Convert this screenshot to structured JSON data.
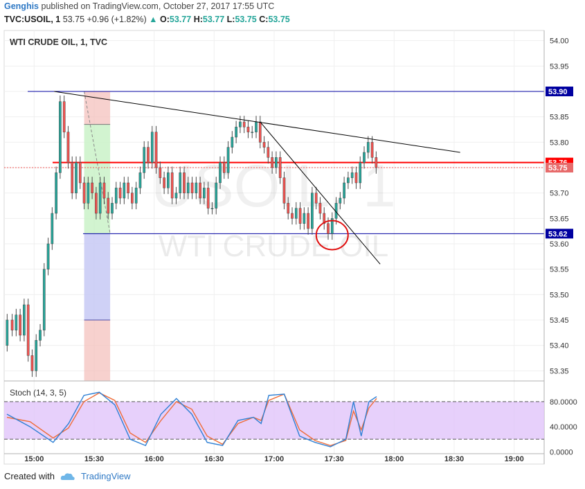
{
  "header": {
    "author": "Genghis",
    "published_text": "published on TradingView.com, October 27, 2017 17:55 UTC",
    "symbol": "TVC:USOIL, 1",
    "last": "53.75",
    "change_arrow": "▲",
    "change": "+0.96 (+1.82%)",
    "o_label": "O:",
    "o_val": "53.77",
    "h_label": "H:",
    "h_val": "53.77",
    "l_label": "L:",
    "l_val": "53.75",
    "c_label": "C:",
    "c_val": "53.75"
  },
  "chart_title": "WTI CRUDE OIL, 1, TVC",
  "watermark": {
    "line1": "USOIL, 1",
    "line2": "WTI CRUDE OIL"
  },
  "footer": {
    "created_with": "Created with",
    "brand": "TradingView"
  },
  "colors": {
    "up": "#26a69a",
    "down": "#ef5350",
    "candle_body": "#4a4a4a",
    "resistance": "#ff0000",
    "level_line": "#0000a0",
    "trend_line": "#000000",
    "stoch_k": "#2d7fd4",
    "stoch_d": "#ef6c39",
    "stoch_band": "#e1c4fa"
  },
  "chart_data": {
    "type": "candlestick",
    "price_axis": {
      "min": 53.33,
      "max": 54.02,
      "ticks": [
        "54.00",
        "53.95",
        "53.90",
        "53.85",
        "53.80",
        "53.75",
        "53.70",
        "53.65",
        "53.60",
        "53.55",
        "53.50",
        "53.45",
        "53.40",
        "53.35"
      ]
    },
    "time_axis": {
      "start": "14:45",
      "end": "19:15",
      "ticks": [
        "15:00",
        "15:30",
        "16:00",
        "16:30",
        "17:00",
        "17:30",
        "18:00",
        "18:30",
        "19:00"
      ]
    },
    "horizontal_levels": [
      {
        "value": 53.9,
        "label": "53.90",
        "style": "level"
      },
      {
        "value": 53.76,
        "label": "53.76",
        "style": "resistance"
      },
      {
        "value": 53.62,
        "label": "53.62",
        "style": "level"
      }
    ],
    "last_price": {
      "value": 53.75,
      "label": "53.75"
    },
    "trend_lines": [
      {
        "from": [
          "15:10",
          53.9
        ],
        "to": [
          "18:33",
          53.78
        ]
      },
      {
        "from": [
          "16:53",
          53.84
        ],
        "to": [
          "17:53",
          53.56
        ]
      }
    ],
    "position_tool": {
      "from": "15:25",
      "to": "15:38",
      "entry": 53.62,
      "target": 53.835,
      "stop": 53.45,
      "top": 53.9,
      "bottom": 53.33
    },
    "circle_marker": {
      "time": "17:29",
      "price": 53.617
    },
    "price_path": [
      [
        "14:45",
        53.4
      ],
      [
        "14:48",
        53.45
      ],
      [
        "14:50",
        53.43
      ],
      [
        "14:52",
        53.46
      ],
      [
        "14:54",
        53.42
      ],
      [
        "14:56",
        53.48
      ],
      [
        "14:58",
        53.38
      ],
      [
        "15:00",
        53.35
      ],
      [
        "15:02",
        53.41
      ],
      [
        "15:04",
        53.43
      ],
      [
        "15:06",
        53.55
      ],
      [
        "15:08",
        53.6
      ],
      [
        "15:10",
        53.66
      ],
      [
        "15:12",
        53.74
      ],
      [
        "15:14",
        53.88
      ],
      [
        "15:16",
        53.82
      ],
      [
        "15:18",
        53.76
      ],
      [
        "15:20",
        53.7
      ],
      [
        "15:22",
        53.76
      ],
      [
        "15:24",
        53.72
      ],
      [
        "15:26",
        53.68
      ],
      [
        "15:28",
        53.72
      ],
      [
        "15:30",
        53.7
      ],
      [
        "15:32",
        53.66
      ],
      [
        "15:34",
        53.72
      ],
      [
        "15:36",
        53.69
      ],
      [
        "15:38",
        53.66
      ],
      [
        "15:40",
        53.68
      ],
      [
        "15:42",
        53.71
      ],
      [
        "15:44",
        53.69
      ],
      [
        "15:46",
        53.72
      ],
      [
        "15:48",
        53.7
      ],
      [
        "15:50",
        53.68
      ],
      [
        "15:52",
        53.71
      ],
      [
        "15:54",
        53.74
      ],
      [
        "15:56",
        53.79
      ],
      [
        "15:58",
        53.76
      ],
      [
        "16:00",
        53.82
      ],
      [
        "16:02",
        53.75
      ],
      [
        "16:04",
        53.73
      ],
      [
        "16:06",
        53.71
      ],
      [
        "16:08",
        53.74
      ],
      [
        "16:10",
        53.69
      ],
      [
        "16:12",
        53.7
      ],
      [
        "16:14",
        53.74
      ],
      [
        "16:16",
        53.7
      ],
      [
        "16:18",
        53.72
      ],
      [
        "16:20",
        53.7
      ],
      [
        "16:22",
        53.72
      ],
      [
        "16:24",
        53.69
      ],
      [
        "16:26",
        53.71
      ],
      [
        "16:28",
        53.67
      ],
      [
        "16:30",
        53.67
      ],
      [
        "16:32",
        53.72
      ],
      [
        "16:34",
        53.76
      ],
      [
        "16:36",
        53.74
      ],
      [
        "16:38",
        53.79
      ],
      [
        "16:40",
        53.81
      ],
      [
        "16:42",
        53.83
      ],
      [
        "16:44",
        53.84
      ],
      [
        "16:46",
        53.83
      ],
      [
        "16:48",
        53.82
      ],
      [
        "16:50",
        53.82
      ],
      [
        "16:52",
        53.84
      ],
      [
        "16:54",
        53.8
      ],
      [
        "16:56",
        53.79
      ],
      [
        "16:58",
        53.77
      ],
      [
        "17:00",
        53.75
      ],
      [
        "17:02",
        53.77
      ],
      [
        "17:04",
        53.73
      ],
      [
        "17:06",
        53.68
      ],
      [
        "17:08",
        53.66
      ],
      [
        "17:10",
        53.65
      ],
      [
        "17:12",
        53.67
      ],
      [
        "17:14",
        53.64
      ],
      [
        "17:16",
        53.66
      ],
      [
        "17:18",
        53.63
      ],
      [
        "17:20",
        53.7
      ],
      [
        "17:22",
        53.68
      ],
      [
        "17:24",
        53.66
      ],
      [
        "17:26",
        53.64
      ],
      [
        "17:28",
        53.62
      ],
      [
        "17:30",
        53.65
      ],
      [
        "17:32",
        53.68
      ],
      [
        "17:34",
        53.69
      ],
      [
        "17:36",
        53.72
      ],
      [
        "17:38",
        53.73
      ],
      [
        "17:40",
        53.74
      ],
      [
        "17:42",
        53.72
      ],
      [
        "17:44",
        53.76
      ],
      [
        "17:46",
        53.78
      ],
      [
        "17:48",
        53.8
      ],
      [
        "17:50",
        53.77
      ],
      [
        "17:52",
        53.75
      ]
    ],
    "indicator": {
      "name": "Stoch (14, 3, 5)",
      "range": [
        -3,
        113
      ],
      "ticks": [
        "80.0000",
        "40.0000",
        "0.0000"
      ],
      "bands": [
        20,
        80
      ],
      "k": [
        [
          0,
          60
        ],
        [
          6,
          40
        ],
        [
          12,
          15
        ],
        [
          16,
          45
        ],
        [
          20,
          90
        ],
        [
          24,
          95
        ],
        [
          28,
          75
        ],
        [
          32,
          20
        ],
        [
          36,
          10
        ],
        [
          40,
          60
        ],
        [
          44,
          85
        ],
        [
          48,
          60
        ],
        [
          52,
          15
        ],
        [
          56,
          10
        ],
        [
          60,
          50
        ],
        [
          64,
          55
        ],
        [
          66,
          45
        ],
        [
          68,
          90
        ],
        [
          72,
          92
        ],
        [
          76,
          25
        ],
        [
          80,
          15
        ],
        [
          84,
          8
        ],
        [
          88,
          20
        ],
        [
          90,
          80
        ],
        [
          92,
          25
        ],
        [
          94,
          80
        ],
        [
          96,
          88
        ]
      ],
      "d": [
        [
          0,
          55
        ],
        [
          6,
          48
        ],
        [
          12,
          22
        ],
        [
          16,
          38
        ],
        [
          20,
          80
        ],
        [
          24,
          94
        ],
        [
          28,
          82
        ],
        [
          32,
          30
        ],
        [
          36,
          15
        ],
        [
          40,
          50
        ],
        [
          44,
          80
        ],
        [
          48,
          68
        ],
        [
          52,
          25
        ],
        [
          56,
          12
        ],
        [
          60,
          45
        ],
        [
          64,
          55
        ],
        [
          66,
          50
        ],
        [
          68,
          82
        ],
        [
          72,
          92
        ],
        [
          76,
          35
        ],
        [
          80,
          18
        ],
        [
          84,
          10
        ],
        [
          88,
          18
        ],
        [
          90,
          65
        ],
        [
          92,
          35
        ],
        [
          94,
          70
        ],
        [
          96,
          85
        ]
      ]
    },
    "grid": true
  }
}
